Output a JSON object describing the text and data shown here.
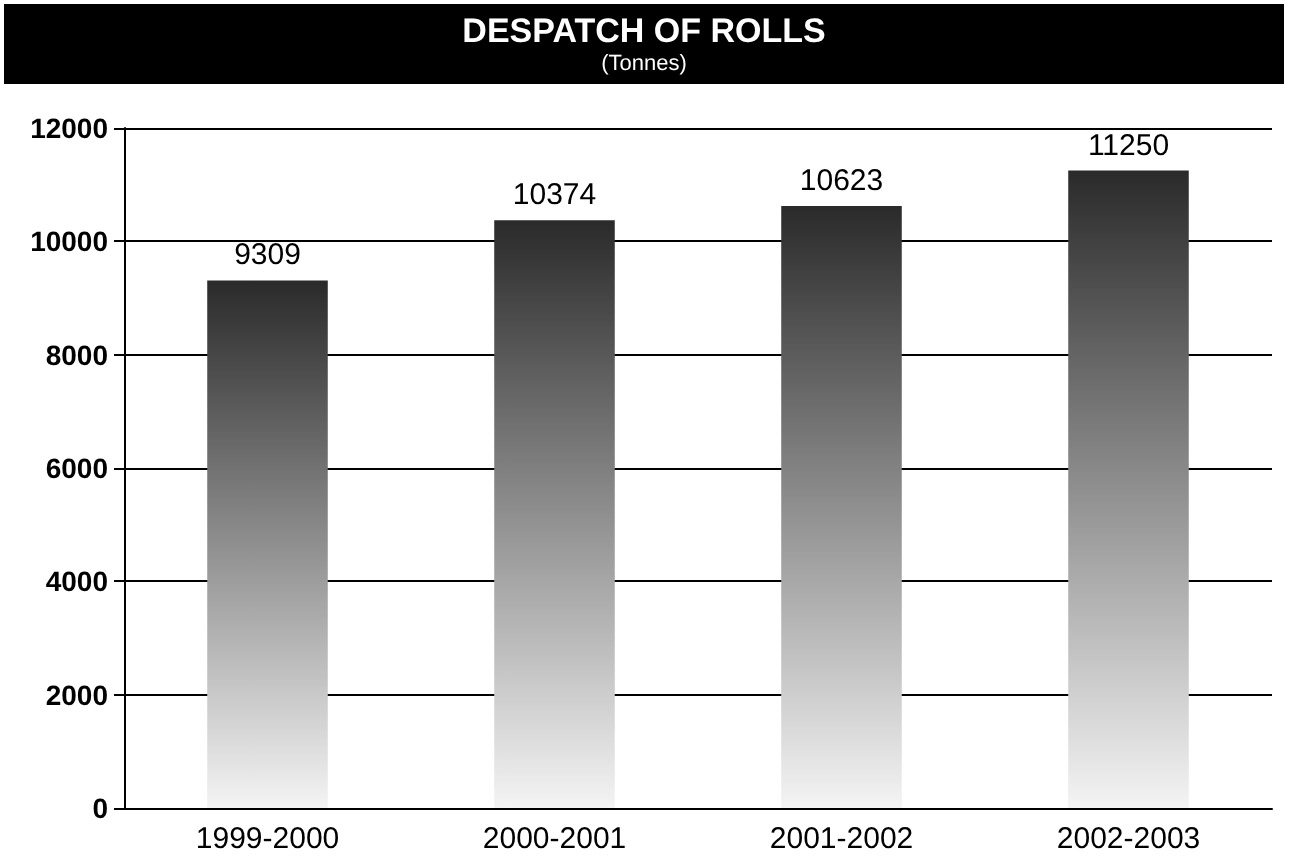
{
  "chart_data": {
    "type": "bar",
    "title": "DESPATCH OF ROLLS",
    "subtitle": "(Tonnes)",
    "categories": [
      "1999-2000",
      "2000-2001",
      "2001-2002",
      "2002-2003"
    ],
    "values": [
      9309,
      10374,
      10623,
      11250
    ],
    "color": "#2a2a2a",
    "ylim": [
      0,
      12000
    ],
    "yticks": [
      0,
      2000,
      4000,
      6000,
      8000,
      10000,
      12000
    ],
    "grid": "y",
    "data_labels": true
  }
}
